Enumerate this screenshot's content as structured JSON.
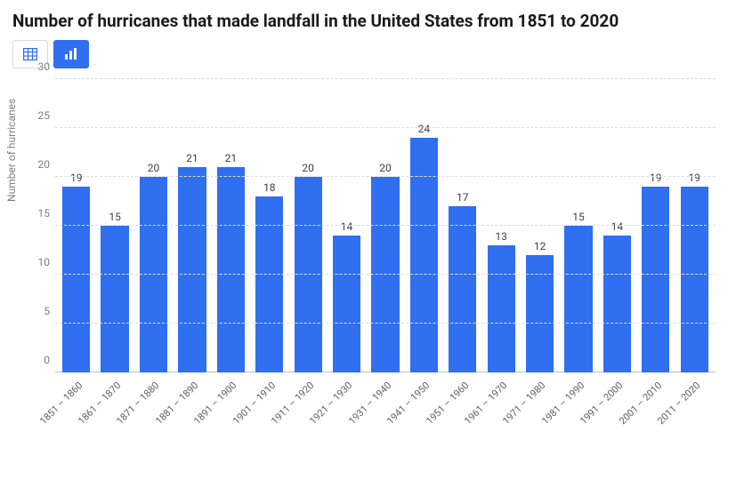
{
  "title": "Number of hurricanes that made landfall in the United States from 1851 to 2020",
  "view_toggle": {
    "table_icon": "table-icon",
    "chart_icon": "bar-chart-icon",
    "active": "chart"
  },
  "chart": {
    "type": "bar",
    "ylabel": "Number of hurricanes",
    "ylim": [
      0,
      30
    ],
    "ytick_step": 5,
    "yticks": [
      0,
      5,
      10,
      15,
      20,
      25,
      30
    ],
    "grid_color": "#d9dde1",
    "baseline_color": "#b8bfc6",
    "background_color": "#ffffff",
    "bar_color": "#2f6ff0",
    "bar_width_pct": 72,
    "value_label_fontsize": 12,
    "axis_label_fontsize": 12,
    "xtick_fontsize": 11,
    "xtick_rotation_deg": -45,
    "categories": [
      "1851 – 1860",
      "1861 – 1870",
      "1871 – 1880",
      "1881 – 1890",
      "1891 – 1900",
      "1901 – 1910",
      "1911 – 1920",
      "1921 – 1930",
      "1931 – 1940",
      "1941 – 1950",
      "1951 – 1960",
      "1961 – 1970",
      "1971 – 1980",
      "1981 – 1990",
      "1991 – 2000",
      "2001 – 2010",
      "2011 – 2020"
    ],
    "values": [
      19,
      15,
      20,
      21,
      21,
      18,
      20,
      14,
      20,
      24,
      17,
      13,
      12,
      15,
      14,
      19,
      19
    ]
  }
}
